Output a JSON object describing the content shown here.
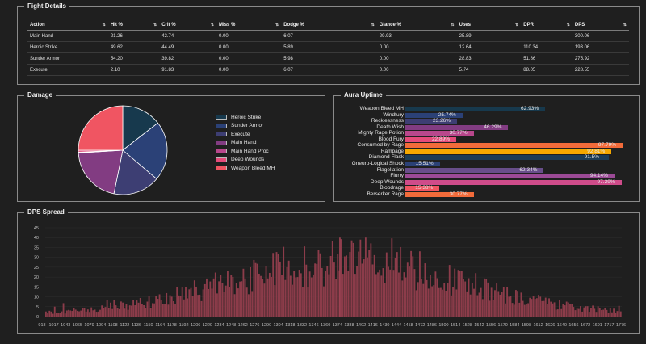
{
  "fight": {
    "title": "Fight Details",
    "columns": [
      "Action",
      "Hit %",
      "Crit %",
      "Miss %",
      "Dodge %",
      "Glance %",
      "Uses",
      "DPR",
      "DPS"
    ],
    "rows": [
      [
        "Main Hand",
        "21.26",
        "42.74",
        "0.00",
        "6.07",
        "29.93",
        "25.89",
        "",
        "300.06"
      ],
      [
        "Heroic Strike",
        "49.62",
        "44.49",
        "0.00",
        "5.89",
        "0.00",
        "12.64",
        "110.34",
        "193.06"
      ],
      [
        "Sunder Armor",
        "54.20",
        "39.82",
        "0.00",
        "5.98",
        "0.00",
        "28.83",
        "51.86",
        "275.92"
      ],
      [
        "Execute",
        "2.10",
        "91.83",
        "0.00",
        "6.07",
        "0.00",
        "5.74",
        "88.05",
        "228.55"
      ]
    ]
  },
  "damage": {
    "title": "Damage",
    "slices": [
      {
        "name": "Heroic Strike",
        "value": 14.5,
        "color": "#17394d"
      },
      {
        "name": "Sunder Armor",
        "value": 21.7,
        "color": "#2b4177"
      },
      {
        "name": "Execute",
        "value": 17.0,
        "color": "#3d3e73"
      },
      {
        "name": "Main Hand",
        "value": 20.8,
        "color": "#823c82"
      },
      {
        "name": "Main Hand Proc",
        "value": 0.3,
        "color": "#b8478c"
      },
      {
        "name": "Deep Wounds",
        "value": 0.7,
        "color": "#e44b7a"
      },
      {
        "name": "Weapon Bleed MH",
        "value": 25.0,
        "color": "#f05562"
      }
    ]
  },
  "aura": {
    "title": "Aura Uptime",
    "items": [
      {
        "name": "Weapon Bleed MH",
        "label": "62.93%",
        "value": 62.93,
        "color": "#17394d"
      },
      {
        "name": "Windfury",
        "label": "25.74%",
        "value": 25.74,
        "color": "#2b4177"
      },
      {
        "name": "Recklessness",
        "label": "23.26%",
        "value": 23.26,
        "color": "#3d3e73"
      },
      {
        "name": "Death Wish",
        "label": "46.29%",
        "value": 46.29,
        "color": "#823c82"
      },
      {
        "name": "Mighty Rage Potion",
        "label": "30.77%",
        "value": 30.77,
        "color": "#b8478c"
      },
      {
        "name": "Blood Fury",
        "label": "22.89%",
        "value": 22.89,
        "color": "#e44b7a"
      },
      {
        "name": "Consumed by Rage",
        "label": "97.79%",
        "value": 97.79,
        "color": "#f26b3a"
      },
      {
        "name": "Rampage",
        "label": "92.81%",
        "value": 92.81,
        "color": "#f5a800"
      },
      {
        "name": "Diamond Flask",
        "label": "91.5%",
        "value": 91.5,
        "color": "#1c3c55"
      },
      {
        "name": "Gneuro-Logical Shock",
        "label": "15.51%",
        "value": 15.51,
        "color": "#2b4177"
      },
      {
        "name": "Flagellation",
        "label": "62.34%",
        "value": 62.34,
        "color": "#684e8a"
      },
      {
        "name": "Flurry",
        "label": "94.14%",
        "value": 94.14,
        "color": "#9b4a96"
      },
      {
        "name": "Deep Wounds",
        "label": "97.29%",
        "value": 97.29,
        "color": "#cf4c8a"
      },
      {
        "name": "Bloodrage",
        "label": "15.38%",
        "value": 15.38,
        "color": "#f05562"
      },
      {
        "name": "Berserker Rage",
        "label": "30.77%",
        "value": 30.77,
        "color": "#f26b3a"
      }
    ]
  },
  "spread": {
    "title": "DPS Spread"
  },
  "chart_data": {
    "type": "bar",
    "title": "DPS Spread",
    "ylim": [
      0,
      45
    ],
    "yticks": [
      0,
      5,
      10,
      15,
      20,
      25,
      30,
      35,
      40,
      45
    ],
    "x_ticks": [
      "918",
      "1017",
      "1043",
      "1065",
      "1079",
      "1094",
      "1108",
      "1122",
      "1136",
      "1150",
      "1164",
      "1178",
      "1192",
      "1206",
      "1220",
      "1234",
      "1248",
      "1262",
      "1276",
      "1290",
      "1304",
      "1318",
      "1332",
      "1346",
      "1360",
      "1374",
      "1388",
      "1402",
      "1416",
      "1430",
      "1444",
      "1458",
      "1472",
      "1486",
      "1500",
      "1514",
      "1528",
      "1542",
      "1556",
      "1570",
      "1584",
      "1598",
      "1612",
      "1626",
      "1640",
      "1656",
      "1672",
      "1691",
      "1717",
      "1776"
    ],
    "peak_x": 1360,
    "peak_y": 40,
    "color": "#8c3c4a"
  }
}
